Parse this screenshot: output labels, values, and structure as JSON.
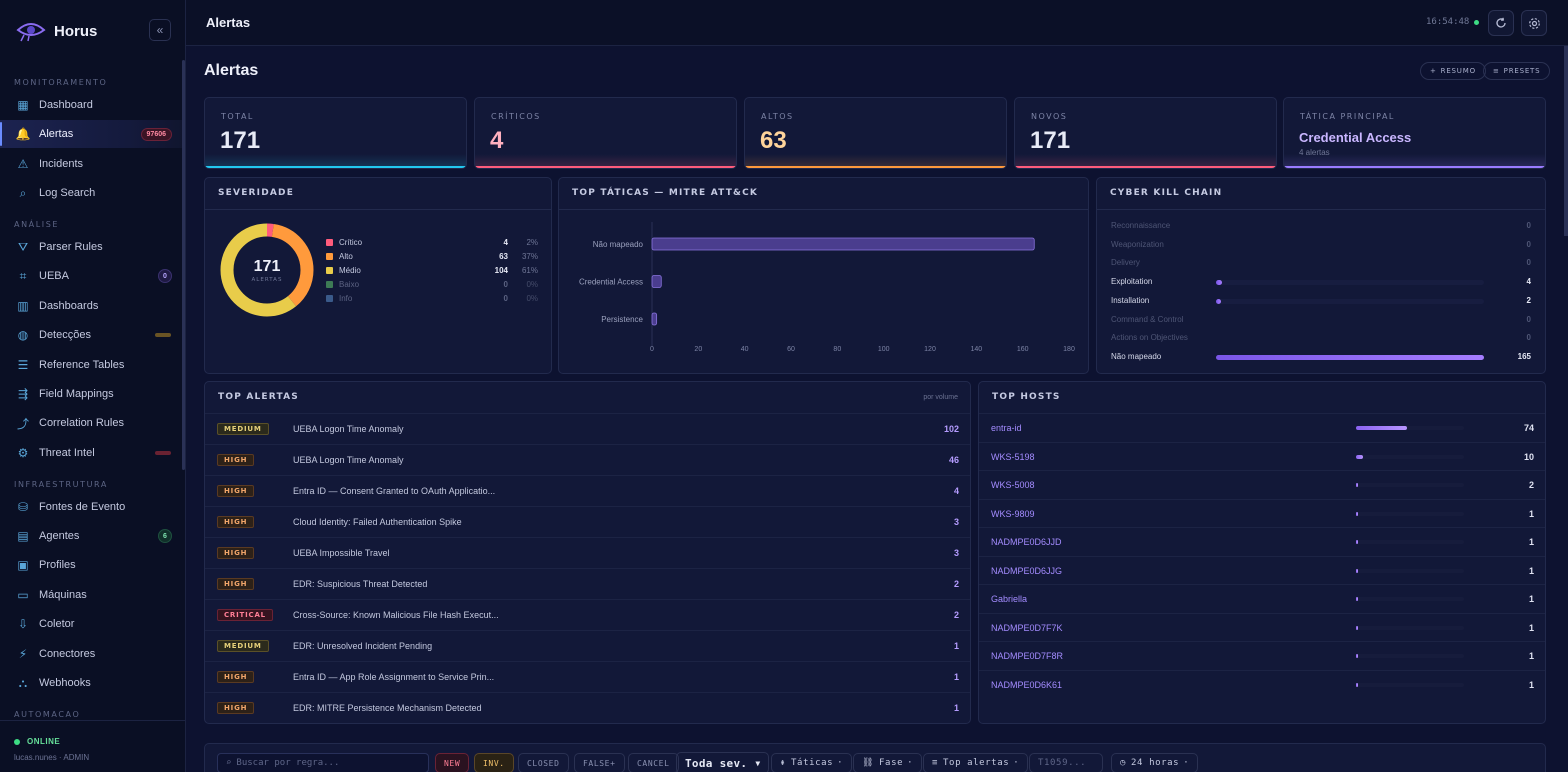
{
  "app": {
    "name": "Horus"
  },
  "sidebar": {
    "sections": {
      "monitoring": "MONITORAMENTO",
      "analysis": "ANÁLISE",
      "infra": "INFRAESTRUTURA",
      "automation": "AUTOMACAO"
    },
    "items": [
      {
        "label": "Dashboard",
        "icon": "grid-icon"
      },
      {
        "label": "Alertas",
        "icon": "bell-icon",
        "badge": "97606",
        "active": true
      },
      {
        "label": "Incidents",
        "icon": "warning-icon"
      },
      {
        "label": "Log Search",
        "icon": "search-icon"
      },
      {
        "label": "Parser Rules",
        "icon": "filter-icon"
      },
      {
        "label": "UEBA",
        "icon": "user-scan-icon",
        "badge": "0"
      },
      {
        "label": "Dashboards",
        "icon": "bar-chart-icon"
      },
      {
        "label": "Detecções",
        "icon": "globe-icon"
      },
      {
        "label": "Reference Tables",
        "icon": "table-icon"
      },
      {
        "label": "Field Mappings",
        "icon": "mapping-icon"
      },
      {
        "label": "Correlation Rules",
        "icon": "correlation-icon"
      },
      {
        "label": "Threat Intel",
        "icon": "gear-icon"
      },
      {
        "label": "Fontes de Evento",
        "icon": "database-icon"
      },
      {
        "label": "Agentes",
        "icon": "server-icon",
        "badge": "6"
      },
      {
        "label": "Profiles",
        "icon": "id-card-icon"
      },
      {
        "label": "Máquinas",
        "icon": "devices-icon"
      },
      {
        "label": "Coletor",
        "icon": "download-icon"
      },
      {
        "label": "Conectores",
        "icon": "plug-icon"
      },
      {
        "label": "Webhooks",
        "icon": "webhook-icon"
      }
    ],
    "status": "ONLINE",
    "user": "lucas.nunes · ADMIN"
  },
  "topbar": {
    "title": "Alertas",
    "clock": "16:54:48"
  },
  "main": {
    "heading": "Alertas",
    "buttons": {
      "resumo": "RESUMO",
      "presets": "PRESETS"
    },
    "stats": [
      {
        "label": "TOTAL",
        "value": "171",
        "color": "#22c8f0"
      },
      {
        "label": "CRÍTICOS",
        "value": "4",
        "color": "#ff5c7c"
      },
      {
        "label": "ALTOS",
        "value": "63",
        "color": "#ff9a3c"
      },
      {
        "label": "NOVOS",
        "value": "171",
        "color": "#ff5c7c"
      },
      {
        "label": "TÁTICA PRINCIPAL",
        "value": "Credential Access",
        "sub": "4 alertas",
        "color": "#9a7cff"
      }
    ],
    "severity": {
      "title": "SEVERIDADE",
      "total": "171",
      "total_label": "ALERTAS",
      "rows": [
        {
          "name": "Crítico",
          "count": "4",
          "pct": "2%",
          "color": "#ff5c7c",
          "value": 4
        },
        {
          "name": "Alto",
          "count": "63",
          "pct": "37%",
          "color": "#ff9a3c",
          "value": 63
        },
        {
          "name": "Médio",
          "count": "104",
          "pct": "61%",
          "color": "#e8cc4a",
          "value": 104
        },
        {
          "name": "Baixo",
          "count": "0",
          "pct": "0%",
          "color": "#3d7a55",
          "value": 0
        },
        {
          "name": "Info",
          "count": "0",
          "pct": "0%",
          "color": "#3a5a8a",
          "value": 0
        }
      ]
    },
    "tactics": {
      "title": "TOP TÁTICAS — MITRE ATT&CK"
    },
    "killchain": {
      "title": "CYBER KILL CHAIN",
      "rows": [
        {
          "name": "Reconnaissance",
          "count": "0",
          "value": 0
        },
        {
          "name": "Weaponization",
          "count": "0",
          "value": 0
        },
        {
          "name": "Delivery",
          "count": "0",
          "value": 0
        },
        {
          "name": "Exploitation",
          "count": "4",
          "value": 4
        },
        {
          "name": "Installation",
          "count": "2",
          "value": 2
        },
        {
          "name": "Command & Control",
          "count": "0",
          "value": 0
        },
        {
          "name": "Actions on Objectives",
          "count": "0",
          "value": 0
        },
        {
          "name": "Não mapeado",
          "count": "165",
          "value": 165
        }
      ]
    },
    "top_alerts": {
      "title": "TOP ALERTAS",
      "subtitle": "por volume",
      "rows": [
        {
          "sev": "MEDIUM",
          "name": "UEBA Logon Time Anomaly",
          "count": "102"
        },
        {
          "sev": "HIGH",
          "name": "UEBA Logon Time Anomaly",
          "count": "46"
        },
        {
          "sev": "HIGH",
          "name": "Entra ID — Consent Granted to OAuth Applicatio...",
          "count": "4"
        },
        {
          "sev": "HIGH",
          "name": "Cloud Identity: Failed Authentication Spike",
          "count": "3"
        },
        {
          "sev": "HIGH",
          "name": "UEBA Impossible Travel",
          "count": "3"
        },
        {
          "sev": "HIGH",
          "name": "EDR: Suspicious Threat Detected",
          "count": "2"
        },
        {
          "sev": "CRITICAL",
          "name": "Cross-Source: Known Malicious File Hash Execut...",
          "count": "2"
        },
        {
          "sev": "MEDIUM",
          "name": "EDR: Unresolved Incident Pending",
          "count": "1"
        },
        {
          "sev": "HIGH",
          "name": "Entra ID — App Role Assignment to Service Prin...",
          "count": "1"
        },
        {
          "sev": "HIGH",
          "name": "EDR: MITRE Persistence Mechanism Detected",
          "count": "1"
        }
      ]
    },
    "top_hosts": {
      "title": "TOP HOSTS",
      "rows": [
        {
          "name": "entra-id",
          "count": "74",
          "value": 74
        },
        {
          "name": "WKS-5198",
          "count": "10",
          "value": 10
        },
        {
          "name": "WKS-5008",
          "count": "2",
          "value": 2
        },
        {
          "name": "WKS-9809",
          "count": "1",
          "value": 1
        },
        {
          "name": "NADMPE0D6JJD",
          "count": "1",
          "value": 1
        },
        {
          "name": "NADMPE0D6JJG",
          "count": "1",
          "value": 1
        },
        {
          "name": "Gabriella",
          "count": "1",
          "value": 1
        },
        {
          "name": "NADMPE0D7F7K",
          "count": "1",
          "value": 1
        },
        {
          "name": "NADMPE0D7F8R",
          "count": "1",
          "value": 1
        },
        {
          "name": "NADMPE0D6K61",
          "count": "1",
          "value": 1
        }
      ]
    },
    "filters": {
      "search_placeholder": "Buscar por regra...",
      "chips": [
        "NEW",
        "INV.",
        "CLOSED",
        "FALSE+",
        "CANCEL"
      ],
      "severity_select": "Toda sev.",
      "tactics": "Táticas",
      "phase": "Fase",
      "top_alerts": "Top alertas",
      "technique_placeholder": "T1059...",
      "range": "24 horas"
    }
  },
  "chart_data": {
    "type": "bar",
    "orientation": "horizontal",
    "categories": [
      "Não mapeado",
      "Credential Access",
      "Persistence"
    ],
    "values": [
      165,
      4,
      2
    ],
    "xlim": [
      0,
      180
    ],
    "ticks": [
      0,
      20,
      40,
      60,
      80,
      100,
      120,
      140,
      160,
      180
    ]
  }
}
